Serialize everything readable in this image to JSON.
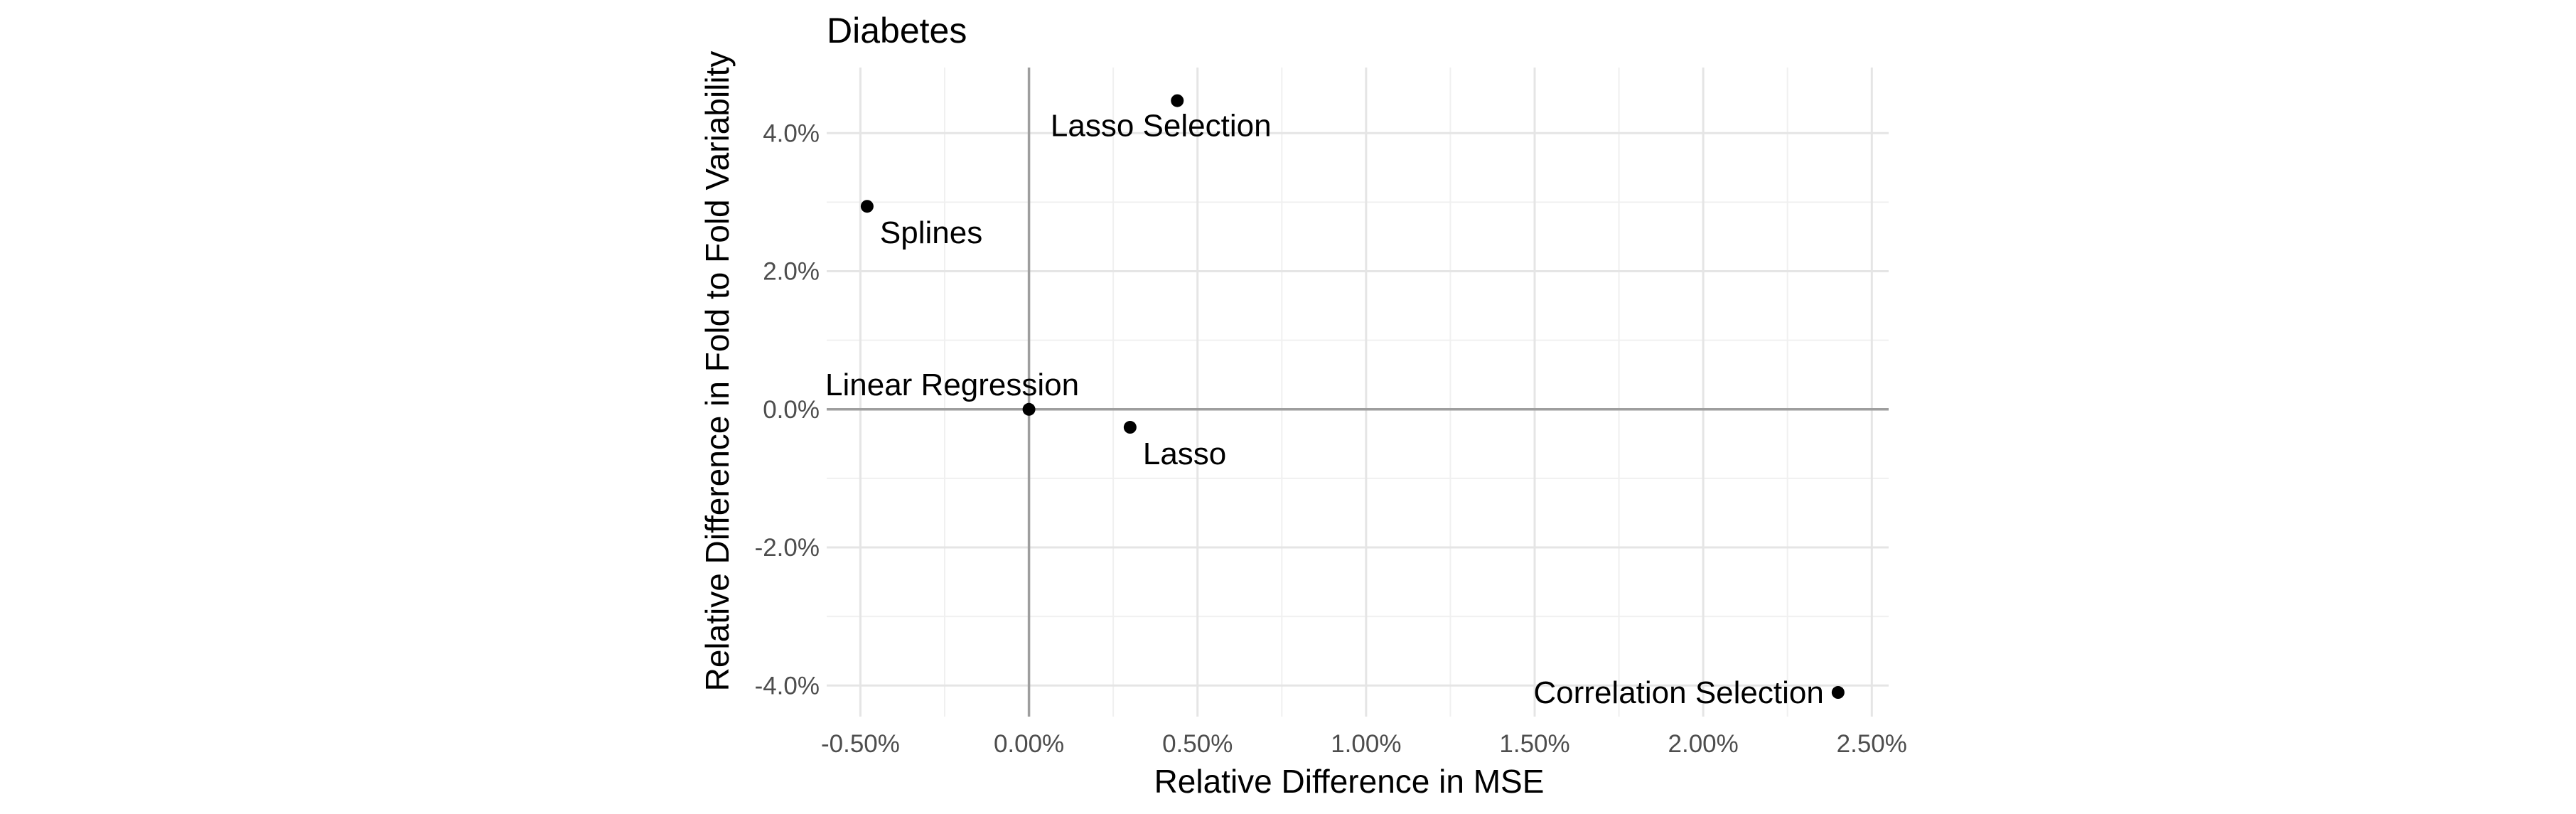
{
  "chart_data": {
    "type": "scatter",
    "title": "Diabetes",
    "xlabel": "Relative Difference in MSE",
    "ylabel": "Relative Difference in Fold to Fold Variability",
    "xlim": [
      -0.6,
      2.55
    ],
    "ylim": [
      -4.45,
      4.95
    ],
    "x_ticks": [
      -0.5,
      0.0,
      0.5,
      1.0,
      1.5,
      2.0,
      2.5
    ],
    "x_tick_labels": [
      "-0.50%",
      "0.00%",
      "0.50%",
      "1.00%",
      "1.50%",
      "2.00%",
      "2.50%"
    ],
    "y_ticks": [
      -4.0,
      -2.0,
      0.0,
      2.0,
      4.0
    ],
    "y_tick_labels": [
      "-4.0%",
      "-2.0%",
      "0.0%",
      "2.0%",
      "4.0%"
    ],
    "grid": true,
    "reference_lines": {
      "x": 0,
      "y": 0
    },
    "points": [
      {
        "label": "Lasso Selection",
        "x": 0.44,
        "y": 4.47,
        "label_pos": "below"
      },
      {
        "label": "Splines",
        "x": -0.48,
        "y": 2.94,
        "label_pos": "below-right"
      },
      {
        "label": "Linear Regression",
        "x": 0.0,
        "y": 0.0,
        "label_pos": "above-left"
      },
      {
        "label": "Lasso",
        "x": 0.3,
        "y": -0.26,
        "label_pos": "below-right"
      },
      {
        "label": "Correlation Selection",
        "x": 2.4,
        "y": -4.1,
        "label_pos": "left"
      }
    ]
  }
}
